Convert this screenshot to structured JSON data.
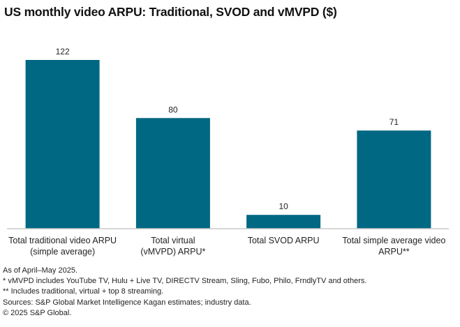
{
  "chart_data": {
    "type": "bar",
    "title": "US monthly video ARPU: Traditional, SVOD and vMVPD ($)",
    "categories": [
      [
        "Total traditional video ARPU",
        "(simple average)"
      ],
      [
        "Total virtual",
        "(vMVPD) ARPU*"
      ],
      [
        "Total SVOD ARPU"
      ],
      [
        "Total simple average video",
        "ARPU**"
      ]
    ],
    "values": [
      122,
      80,
      10,
      71
    ],
    "data_labels": [
      "122",
      "80",
      "10",
      "71"
    ],
    "xlabel": "",
    "ylabel": "",
    "ylim": [
      0,
      122
    ],
    "grid": false,
    "legend": null,
    "bar_color": "#006882",
    "axis_color": "#c8c8c8"
  },
  "notes": [
    "As of April–May 2025.",
    "* vMVPD includes YouTube TV, Hulu + Live TV, DIRECTV Stream, Sling, Fubo, Philo, FrndlyTV and others.",
    "** Includes traditional, virtual + top 8 streaming.",
    "Sources: S&P Global Market Intelligence Kagan estimates; industry data.",
    "© 2025 S&P Global."
  ]
}
